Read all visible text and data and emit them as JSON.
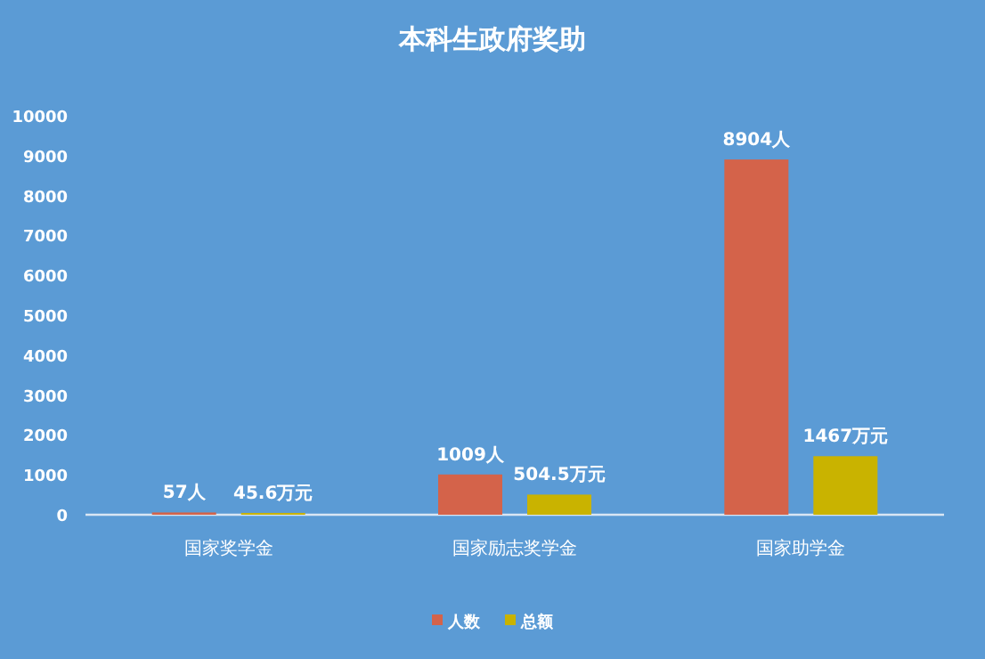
{
  "chart_data": {
    "type": "bar",
    "title": "本科生政府奖助",
    "categories": [
      "国家奖学金",
      "国家励志奖学金",
      "国家助学金"
    ],
    "series": [
      {
        "name": "人数",
        "color": "#d4634a",
        "values": [
          57,
          1009,
          8904
        ],
        "value_labels": [
          "57人",
          "1009人",
          "8904人"
        ]
      },
      {
        "name": "总额",
        "color": "#c9b300",
        "values": [
          45.6,
          504.5,
          1467
        ],
        "value_labels": [
          "45.6万元",
          "504.5万元",
          "1467万元"
        ]
      }
    ],
    "ylim": [
      0,
      10000
    ],
    "yticks": [
      0,
      1000,
      2000,
      3000,
      4000,
      5000,
      6000,
      7000,
      8000,
      9000,
      10000
    ],
    "legend": "bottom"
  }
}
